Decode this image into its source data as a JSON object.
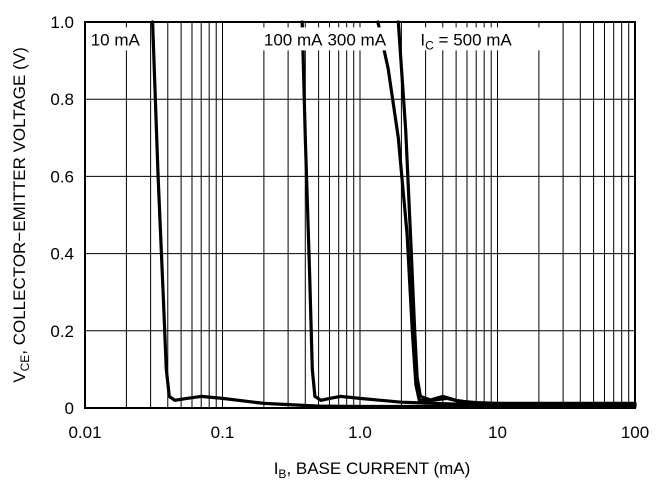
{
  "chart_data": {
    "type": "line",
    "xlabel_main": "I",
    "xlabel_sub": "B",
    "xlabel_rest": ", BASE CURRENT (mA)",
    "ylabel_main": "V",
    "ylabel_sub": "CE",
    "ylabel_rest": ", COLLECTOR−EMITTER VOLTAGE (V)",
    "x_scale": "log",
    "xlim": [
      0.01,
      100
    ],
    "ylim": [
      0,
      1.0
    ],
    "x_ticks": [
      {
        "value": 0.01,
        "label": "0.01"
      },
      {
        "value": 0.1,
        "label": "0.1"
      },
      {
        "value": 1,
        "label": "1.0"
      },
      {
        "value": 10,
        "label": "10"
      },
      {
        "value": 100,
        "label": "100"
      }
    ],
    "y_ticks": [
      {
        "value": 0,
        "label": "0"
      },
      {
        "value": 0.2,
        "label": "0.2"
      },
      {
        "value": 0.4,
        "label": "0.4"
      },
      {
        "value": 0.6,
        "label": "0.6"
      },
      {
        "value": 0.8,
        "label": "0.8"
      },
      {
        "value": 1.0,
        "label": "1.0"
      }
    ],
    "grid": true,
    "annotations": [
      {
        "text": "10 mA",
        "x": 0.011,
        "y": 0.955
      },
      {
        "text": "100 mA",
        "x": 0.2,
        "y": 0.955
      },
      {
        "text": "300 mA",
        "x": 0.58,
        "y": 0.955
      },
      {
        "text": "500 mA",
        "prefix_main": "I",
        "prefix_sub": "C",
        "prefix_rest": " = ",
        "x": 2.75,
        "y": 0.955
      }
    ],
    "series": [
      {
        "points": [
          [
            0.031,
            1.0
          ],
          [
            0.034,
            0.6
          ],
          [
            0.037,
            0.3
          ],
          [
            0.039,
            0.1
          ],
          [
            0.041,
            0.03
          ],
          [
            0.045,
            0.02
          ],
          [
            0.055,
            0.025
          ],
          [
            0.07,
            0.03
          ],
          [
            0.1,
            0.025
          ],
          [
            0.2,
            0.012
          ],
          [
            0.5,
            0.005
          ],
          [
            1,
            0.004
          ],
          [
            10,
            0.004
          ],
          [
            100,
            0.004
          ]
        ]
      },
      {
        "points": [
          [
            0.38,
            1.0
          ],
          [
            0.4,
            0.7
          ],
          [
            0.43,
            0.35
          ],
          [
            0.45,
            0.1
          ],
          [
            0.47,
            0.03
          ],
          [
            0.52,
            0.02
          ],
          [
            0.6,
            0.025
          ],
          [
            0.72,
            0.03
          ],
          [
            1.0,
            0.025
          ],
          [
            2.0,
            0.015
          ],
          [
            5,
            0.01
          ],
          [
            10,
            0.008
          ],
          [
            100,
            0.008
          ]
        ]
      },
      {
        "points": [
          [
            1.35,
            1.0
          ],
          [
            1.6,
            0.88
          ],
          [
            1.9,
            0.7
          ],
          [
            2.2,
            0.45
          ],
          [
            2.4,
            0.2
          ],
          [
            2.55,
            0.06
          ],
          [
            2.7,
            0.02
          ],
          [
            3.2,
            0.02
          ],
          [
            4.0,
            0.03
          ],
          [
            5.0,
            0.02
          ],
          [
            7,
            0.012
          ],
          [
            10,
            0.01
          ],
          [
            100,
            0.01
          ]
        ]
      },
      {
        "points": [
          [
            1.9,
            1.0
          ],
          [
            2.15,
            0.72
          ],
          [
            2.35,
            0.42
          ],
          [
            2.5,
            0.2
          ],
          [
            2.6,
            0.08
          ],
          [
            2.75,
            0.03
          ],
          [
            3.3,
            0.02
          ],
          [
            4.3,
            0.025
          ],
          [
            5.2,
            0.018
          ],
          [
            7,
            0.014
          ],
          [
            10,
            0.012
          ],
          [
            100,
            0.012
          ]
        ]
      }
    ]
  }
}
